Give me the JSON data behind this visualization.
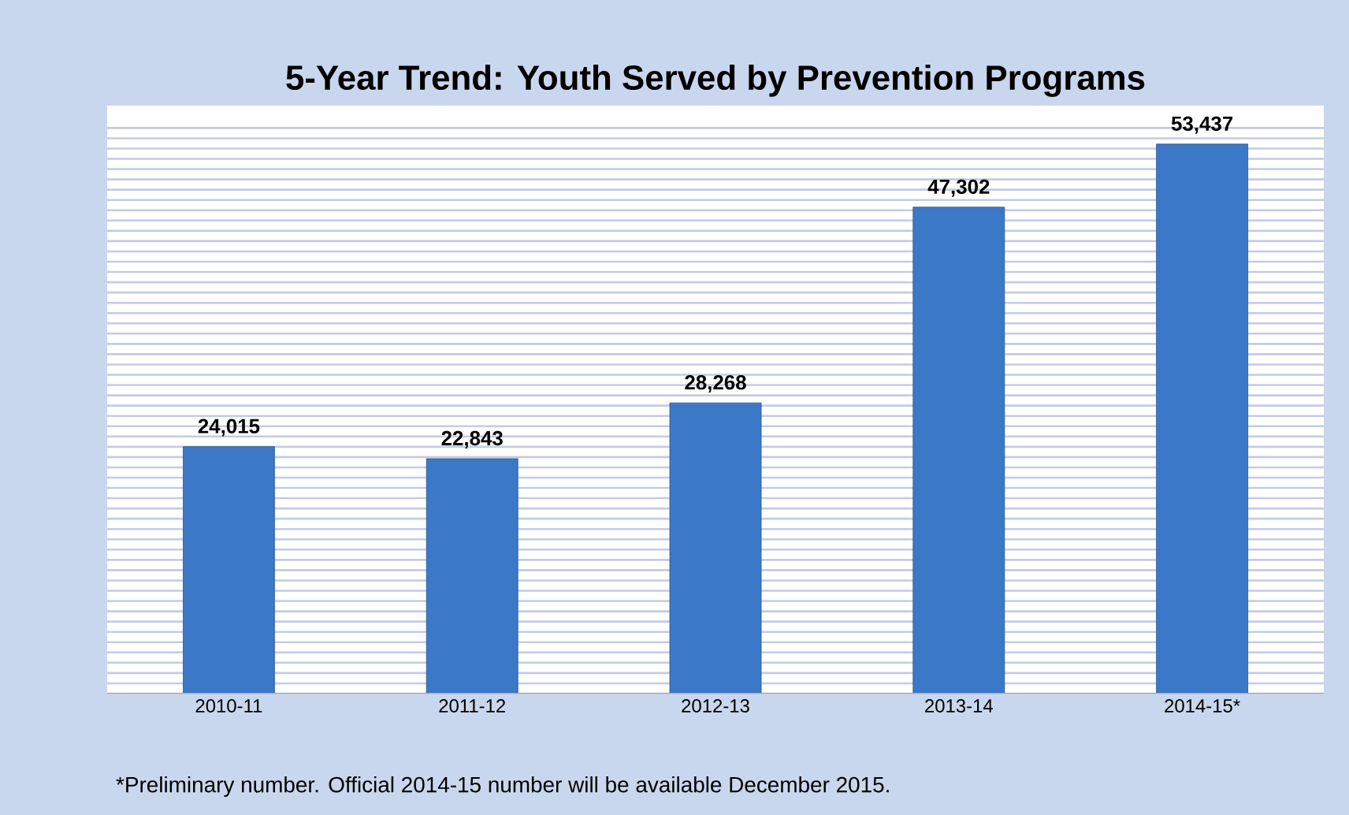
{
  "chart_data": {
    "type": "bar",
    "title": "5-Year Trend: Youth Served by Prevention Programs",
    "categories": [
      "2010-11",
      "2011-12",
      "2012-13",
      "2013-14",
      "2014-15*"
    ],
    "values": [
      24015,
      22843,
      28268,
      47302,
      53437
    ],
    "color": "#3b78c8",
    "value_labels": [
      "24,015",
      "22,843",
      "28,268",
      "47,302",
      "53,437"
    ],
    "grid": "y",
    "tick_labels": "x",
    "annotations": [
      "*Preliminary number.  Official 2014-15 number will be available December 2015."
    ]
  }
}
